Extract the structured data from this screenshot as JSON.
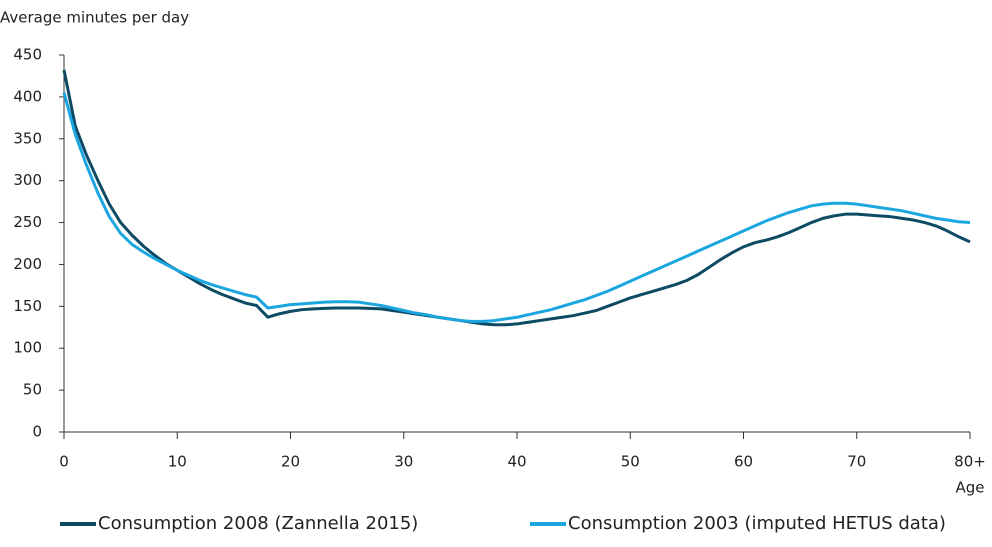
{
  "chart_data": {
    "type": "line",
    "y_label": "Average minutes per day",
    "x_label": "Age",
    "x": [
      0,
      1,
      2,
      3,
      4,
      5,
      6,
      7,
      8,
      9,
      10,
      11,
      12,
      13,
      14,
      15,
      16,
      17,
      18,
      19,
      20,
      21,
      22,
      23,
      24,
      25,
      26,
      27,
      28,
      29,
      30,
      31,
      32,
      33,
      34,
      35,
      36,
      37,
      38,
      39,
      40,
      41,
      42,
      43,
      44,
      45,
      46,
      47,
      48,
      49,
      50,
      51,
      52,
      53,
      54,
      55,
      56,
      57,
      58,
      59,
      60,
      61,
      62,
      63,
      64,
      65,
      66,
      67,
      68,
      69,
      70,
      71,
      72,
      73,
      74,
      75,
      76,
      77,
      78,
      79,
      80
    ],
    "series": [
      {
        "name": "Consumption 2008 (Zannella 2015)",
        "color": "#0d4a63",
        "values": [
          432,
          365,
          330,
          300,
          272,
          250,
          235,
          222,
          211,
          201,
          193,
          185,
          177,
          170,
          164,
          159,
          154,
          151,
          137,
          141,
          144,
          146,
          147,
          147.5,
          148,
          148,
          148,
          147.5,
          147,
          145,
          143,
          141,
          139,
          137,
          135,
          133,
          131,
          129,
          128,
          128,
          129,
          131,
          133,
          135,
          137,
          139,
          142,
          145,
          150,
          155,
          160,
          164,
          168,
          172,
          176,
          181,
          188,
          197,
          206,
          214,
          221,
          226,
          229,
          233,
          238,
          244,
          250,
          255,
          258,
          260,
          260,
          259,
          258,
          257,
          255,
          253,
          250,
          246,
          240,
          233,
          227
        ]
      },
      {
        "name": "Consumption 2003 (imputed HETUS data)",
        "color": "#1ba6e0",
        "values": [
          405,
          355,
          318,
          285,
          257,
          237,
          224,
          215,
          207,
          200,
          193,
          187,
          181,
          176,
          172,
          168,
          164,
          161,
          148,
          150,
          152,
          153,
          154,
          155,
          155.5,
          155.5,
          155,
          153,
          151,
          148,
          145,
          142,
          140,
          137,
          135,
          133,
          132,
          132,
          133,
          135,
          137,
          140,
          143,
          146,
          150,
          154,
          158,
          163,
          168,
          174,
          180,
          186,
          192,
          198,
          204,
          210,
          216,
          222,
          228,
          234,
          240,
          246,
          252,
          257,
          262,
          266,
          270,
          272,
          273,
          273,
          272,
          270,
          268,
          266,
          264,
          261,
          258,
          255,
          253,
          251,
          250
        ]
      }
    ],
    "xlim": [
      0,
      80
    ],
    "xticks": [
      0,
      10,
      20,
      30,
      40,
      50,
      60,
      70,
      {
        "value": 80,
        "label": "80+"
      }
    ],
    "ylim": [
      0,
      450
    ],
    "yticks": [
      0,
      50,
      100,
      150,
      200,
      250,
      300,
      350,
      400,
      450
    ]
  }
}
